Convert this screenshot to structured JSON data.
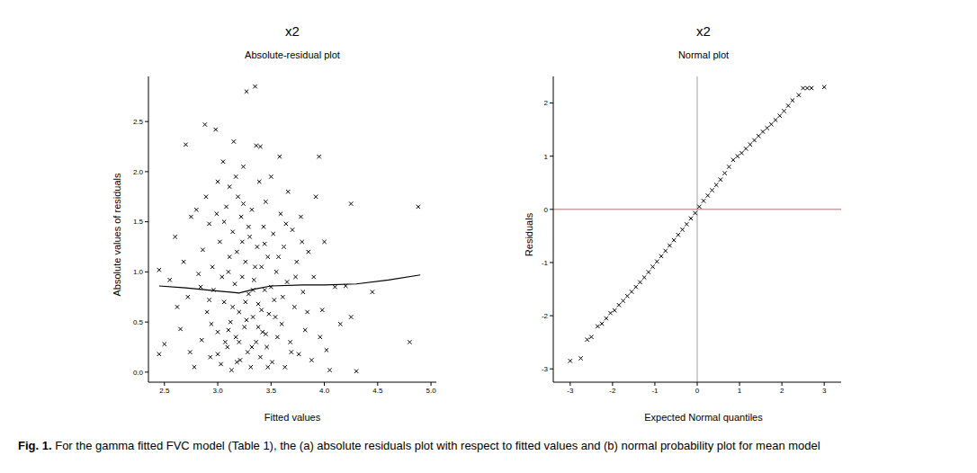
{
  "caption": {
    "label": "Fig. 1.",
    "text": "For the gamma fitted FVC model  (Table 1), the (a) absolute residuals plot with respect to fitted values and (b) normal probability plot for mean model"
  },
  "chart_data": [
    {
      "type": "scatter",
      "title": "x2",
      "subtitle": "Absolute-residual plot",
      "x_label": "Fitted values",
      "y_label": "Absolute values of residuals",
      "marker": "x",
      "color": "#000000",
      "xlim": [
        2.35,
        5.05
      ],
      "ylim": [
        -0.1,
        2.95
      ],
      "xticks": [
        2.5,
        {
          "value": 3,
          "label": "3.0"
        },
        3.5,
        {
          "value": 4,
          "label": "4.0"
        },
        4.5,
        {
          "value": 5,
          "label": "5.0"
        }
      ],
      "yticks": [
        {
          "value": 0,
          "label": "0.0"
        },
        0.5,
        {
          "value": 1,
          "label": "1.0"
        },
        1.5,
        {
          "value": 2,
          "label": "2.0"
        },
        2.5
      ],
      "x": [
        2.45,
        2.45,
        2.5,
        2.55,
        2.6,
        2.65,
        2.68,
        2.7,
        2.72,
        2.75,
        2.78,
        2.8,
        2.82,
        2.85,
        2.86,
        2.88,
        2.9,
        2.92,
        2.93,
        2.95,
        2.96,
        2.98,
        3.0,
        3.0,
        3.02,
        3.03,
        3.05,
        3.06,
        3.08,
        3.09,
        3.1,
        3.11,
        3.12,
        3.13,
        3.14,
        3.15,
        3.16,
        3.17,
        3.18,
        3.19,
        3.2,
        3.21,
        3.22,
        3.23,
        3.24,
        3.25,
        3.26,
        3.27,
        3.28,
        3.29,
        3.3,
        3.31,
        3.32,
        3.33,
        3.34,
        3.35,
        3.36,
        3.36,
        3.37,
        3.38,
        3.39,
        3.4,
        3.4,
        3.41,
        3.42,
        3.43,
        3.44,
        3.45,
        3.46,
        3.47,
        3.48,
        3.5,
        3.51,
        3.52,
        3.53,
        3.55,
        3.56,
        3.58,
        3.59,
        3.6,
        3.62,
        3.63,
        3.65,
        3.66,
        3.68,
        3.7,
        3.72,
        3.74,
        3.76,
        3.78,
        3.8,
        3.82,
        3.85,
        3.88,
        3.9,
        3.92,
        3.95,
        3.96,
        3.98,
        4.0,
        4.02,
        4.05,
        4.1,
        4.15,
        4.2,
        4.25,
        4.25,
        4.3,
        4.45,
        4.8,
        4.88,
        2.62,
        2.74,
        2.84,
        2.89,
        2.94,
        2.99,
        3.04,
        3.07,
        3.11,
        3.14,
        3.17,
        3.2,
        3.23,
        3.26,
        3.29,
        3.32,
        3.35,
        3.38,
        3.41,
        3.44,
        3.47,
        3.5,
        3.54,
        3.57,
        3.61,
        3.64,
        3.69,
        3.73,
        3.79,
        3.84,
        3.1,
        3.18,
        3.27,
        3.33,
        3.45,
        3.06,
        3.0,
        2.92,
        3.24
      ],
      "y": [
        1.02,
        0.18,
        0.28,
        0.92,
        1.35,
        0.43,
        1.1,
        2.27,
        0.75,
        1.55,
        0.05,
        1.62,
        0.98,
        0.32,
        1.22,
        2.47,
        0.6,
        1.48,
        0.15,
        1.05,
        0.82,
        2.42,
        1.9,
        0.4,
        1.3,
        0.08,
        2.1,
        0.7,
        1.65,
        0.25,
        1.0,
        1.85,
        0.5,
        0.02,
        1.4,
        2.3,
        0.88,
        0.35,
        1.2,
        1.75,
        0.6,
        0.12,
        1.55,
        0.95,
        2.05,
        0.45,
        1.1,
        2.8,
        0.2,
        0.78,
        1.35,
        0.05,
        1.62,
        0.55,
        0.92,
        2.85,
        2.26,
        0.3,
        1.25,
        0.68,
        1.9,
        2.25,
        0.15,
        1.05,
        0.4,
        1.45,
        0.82,
        1.7,
        0.25,
        1.15,
        0.58,
        1.95,
        0.1,
        1.38,
        0.72,
        1.0,
        0.35,
        2.15,
        1.58,
        0.48,
        1.25,
        0.05,
        0.9,
        1.8,
        0.3,
        1.42,
        0.65,
        1.1,
        0.18,
        1.55,
        0.8,
        0.42,
        1.2,
        0.12,
        0.95,
        1.75,
        2.15,
        0.35,
        0.62,
        1.3,
        0.22,
        0.02,
        0.85,
        0.48,
        0.86,
        0.55,
        1.68,
        0.01,
        0.8,
        0.3,
        1.65,
        0.65,
        0.2,
        0.85,
        1.75,
        0.48,
        1.58,
        0.95,
        0.3,
        1.15,
        0.65,
        1.95,
        0.3,
        1.3,
        0.7,
        1.45,
        0.25,
        1.05,
        0.45,
        0.62,
        1.28,
        0.05,
        0.85,
        0.55,
        1.15,
        0.75,
        1.48,
        0.2,
        0.95,
        1.3,
        0.6,
        0.42,
        0.1,
        0.52,
        0.82,
        0.38,
        1.5,
        0.18,
        0.72,
        1.68
      ],
      "smooth": {
        "color": "#000000",
        "x": [
          2.45,
          2.7,
          3.0,
          3.2,
          3.35,
          3.5,
          3.8,
          4.0,
          4.3,
          4.6,
          4.9
        ],
        "y": [
          0.86,
          0.84,
          0.81,
          0.79,
          0.83,
          0.86,
          0.87,
          0.87,
          0.88,
          0.92,
          0.97
        ]
      }
    },
    {
      "type": "scatter",
      "title": "x2",
      "subtitle": "Normal plot",
      "x_label": "Expected Normal quantiles",
      "y_label": "Residuals",
      "marker": "x",
      "color": "#000000",
      "xlim": [
        -3.4,
        3.4
      ],
      "ylim": [
        -3.25,
        2.5
      ],
      "xticks": [
        -3,
        -2,
        -1,
        0,
        1,
        2,
        3
      ],
      "yticks": [
        -3,
        -2,
        -1,
        0,
        1,
        2
      ],
      "x": [
        -3.0,
        -2.75,
        -2.6,
        -2.5,
        -2.35,
        -2.25,
        -2.15,
        -2.05,
        -1.95,
        -1.85,
        -1.75,
        -1.65,
        -1.55,
        -1.45,
        -1.35,
        -1.25,
        -1.15,
        -1.05,
        -0.95,
        -0.85,
        -0.75,
        -0.65,
        -0.55,
        -0.45,
        -0.35,
        -0.25,
        -0.15,
        -0.05,
        0.05,
        0.15,
        0.25,
        0.35,
        0.45,
        0.55,
        0.65,
        0.75,
        0.85,
        0.95,
        1.05,
        1.15,
        1.25,
        1.35,
        1.45,
        1.55,
        1.65,
        1.75,
        1.85,
        1.95,
        2.05,
        2.15,
        2.25,
        2.4,
        2.5,
        2.6,
        2.7,
        3.0
      ],
      "y": [
        -2.85,
        -2.8,
        -2.45,
        -2.4,
        -2.2,
        -2.15,
        -2.05,
        -1.95,
        -1.9,
        -1.8,
        -1.72,
        -1.63,
        -1.55,
        -1.46,
        -1.37,
        -1.28,
        -1.18,
        -1.08,
        -0.98,
        -0.88,
        -0.78,
        -0.68,
        -0.58,
        -0.48,
        -0.38,
        -0.28,
        -0.17,
        -0.07,
        0.05,
        0.16,
        0.26,
        0.36,
        0.46,
        0.56,
        0.68,
        0.8,
        0.93,
        1.0,
        1.06,
        1.14,
        1.22,
        1.3,
        1.38,
        1.46,
        1.53,
        1.6,
        1.68,
        1.76,
        1.85,
        1.95,
        2.05,
        2.15,
        2.28,
        2.28,
        2.28,
        2.3
      ],
      "reference_lines": [
        {
          "axis": "x",
          "value": 0,
          "color": "#a0a0a0"
        },
        {
          "axis": "y",
          "value": 0,
          "color": "#b07070"
        }
      ]
    }
  ]
}
